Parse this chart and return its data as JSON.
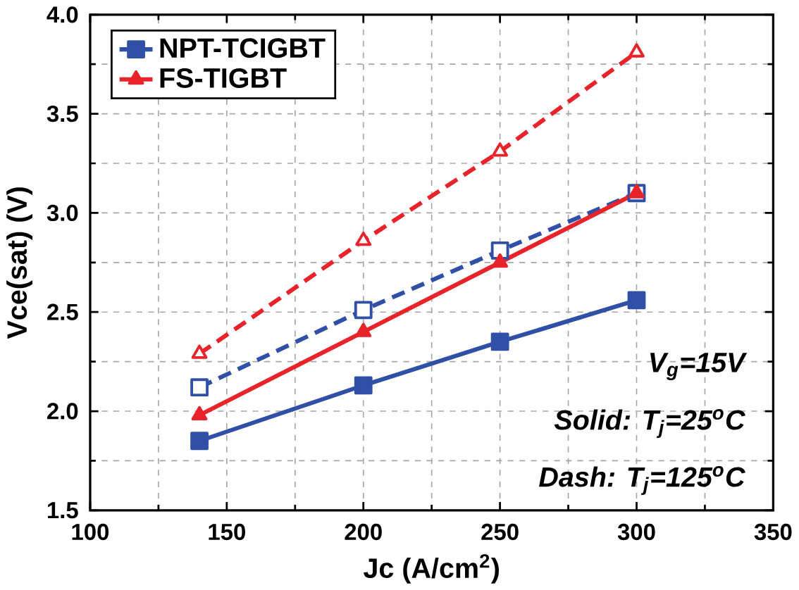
{
  "chart_data": {
    "type": "line",
    "xlabel": "Jc (A/cm$^{2}$)",
    "ylabel": "Vce(sat) (V)",
    "x": [
      140,
      200,
      250,
      300
    ],
    "series": [
      {
        "name": "NPT-TCIGBT",
        "color": "#3050a8",
        "values": [
          1.85,
          2.13,
          2.35,
          2.56
        ],
        "marker": "square",
        "line_style": "solid"
      },
      {
        "name": "FS-TIGBT",
        "color": "#e8232a",
        "values": [
          1.98,
          2.4,
          2.75,
          3.1
        ],
        "marker": "triangle",
        "line_style": "solid"
      },
      {
        "color": "#3050a8",
        "values": [
          2.12,
          2.51,
          2.81,
          3.1
        ],
        "marker": "square",
        "line_style": "dashed"
      },
      {
        "color": "#e8232a",
        "values": [
          2.29,
          2.86,
          3.31,
          3.81
        ],
        "marker": "triangle",
        "line_style": "dashed"
      }
    ],
    "xlim": [
      100,
      350
    ],
    "xticks": [
      100,
      150,
      200,
      250,
      300,
      350
    ],
    "ylim": [
      1.5,
      4.0
    ],
    "yticks": [
      {
        "value": 1.5,
        "label": "1.5"
      },
      {
        "value": 2.0,
        "label": "2.0"
      },
      {
        "value": 2.5,
        "label": "2.5"
      },
      {
        "value": 3.0,
        "label": "3.0"
      },
      {
        "value": 3.5,
        "label": "3.5"
      },
      {
        "value": 4.0,
        "label": "4.0"
      }
    ],
    "grid": true,
    "legend": "top left",
    "annotations": [
      "V$_{g}$=15V",
      "Solid: T$_{j}$=25$^{o}$C",
      "Dash: T$_{j}$=125$^{o}$C"
    ]
  }
}
